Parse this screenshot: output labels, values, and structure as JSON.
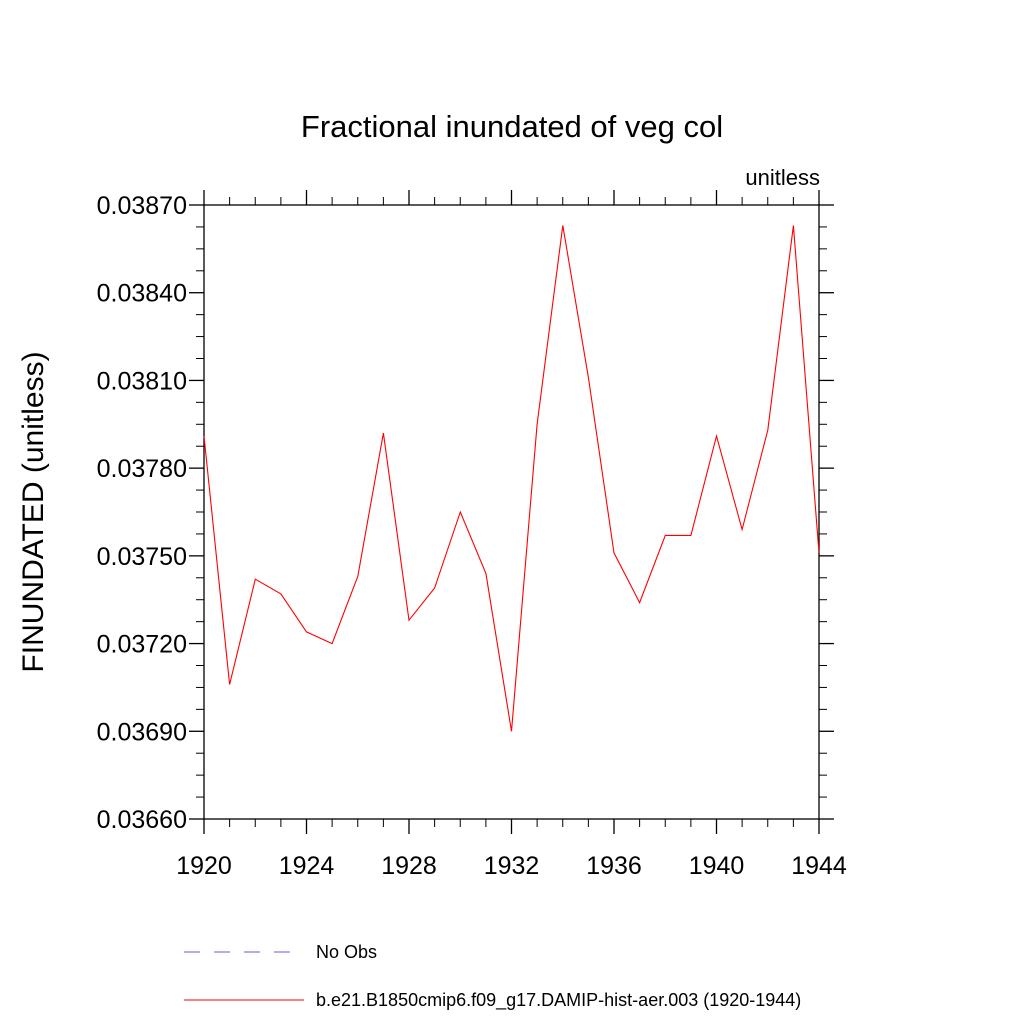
{
  "chart_data": {
    "type": "line",
    "title": "Fractional inundated of veg col",
    "units_label": "unitless",
    "xlabel": "",
    "ylabel": "FINUNDATED  (unitless)",
    "xlim": [
      1920,
      1944
    ],
    "ylim": [
      0.0366,
      0.0387
    ],
    "x_ticks": [
      1920,
      1924,
      1928,
      1932,
      1936,
      1940,
      1944
    ],
    "x_tick_labels": [
      "1920",
      "1924",
      "1928",
      "1932",
      "1936",
      "1940",
      "1944"
    ],
    "y_ticks": [
      0.0366,
      0.0369,
      0.0372,
      0.0375,
      0.0378,
      0.0381,
      0.0384,
      0.0387
    ],
    "y_tick_labels": [
      "0.03660",
      "0.03690",
      "0.03720",
      "0.03750",
      "0.03780",
      "0.03810",
      "0.03840",
      "0.03870"
    ],
    "grid": false,
    "legend_position": "bottom",
    "series": [
      {
        "name": "b.e21.B1850cmip6.f09_g17.DAMIP-hist-aer.003 (1920-1944)",
        "color": "#ff0000",
        "style": "solid",
        "x": [
          1920,
          1921,
          1922,
          1923,
          1924,
          1925,
          1926,
          1927,
          1928,
          1929,
          1930,
          1931,
          1932,
          1933,
          1934,
          1935,
          1936,
          1937,
          1938,
          1939,
          1940,
          1941,
          1942,
          1943,
          1944
        ],
        "y": [
          0.03791,
          0.03706,
          0.03742,
          0.03737,
          0.03724,
          0.0372,
          0.03743,
          0.03792,
          0.03728,
          0.03739,
          0.03765,
          0.03744,
          0.0369,
          0.03795,
          0.03863,
          0.03811,
          0.03751,
          0.03734,
          0.03757,
          0.03757,
          0.03791,
          0.03759,
          0.03793,
          0.03863,
          0.03751
        ]
      }
    ],
    "legend": [
      {
        "label": "No Obs",
        "color": "#6a5acd",
        "style": "dashed"
      },
      {
        "label": "b.e21.B1850cmip6.f09_g17.DAMIP-hist-aer.003 (1920-1944)",
        "color": "#ff0000",
        "style": "solid"
      }
    ]
  }
}
